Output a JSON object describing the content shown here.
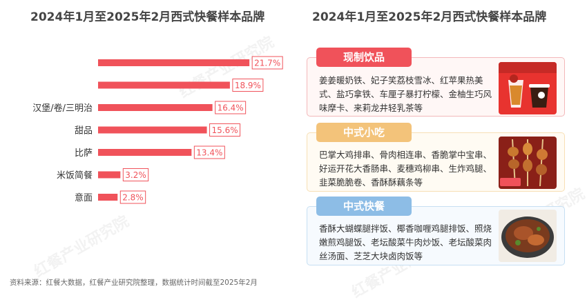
{
  "left_title": "2024年1月至2025年2月西式快餐样本品牌",
  "right_title": "2024年1月至2025年2月西式快餐样本品牌",
  "chart_data": {
    "type": "bar",
    "orientation": "horizontal",
    "categories": [
      "",
      "",
      "汉堡/卷/三明治",
      "甜品",
      "比萨",
      "米饭简餐",
      "意面",
      "",
      ""
    ],
    "values": [
      21.7,
      18.9,
      16.4,
      15.6,
      13.4,
      3.2,
      2.8,
      null,
      null
    ],
    "value_labels": [
      "21.7%",
      "18.9%",
      "16.4%",
      "15.6%",
      "13.4%",
      "3.2%",
      "2.8%",
      "",
      ""
    ],
    "bar_color": "#f0525a",
    "label_border_color": "#f0525a",
    "grid": false,
    "legend": "none"
  },
  "cards": [
    {
      "header": "现制饮品",
      "header_color": "#f0525a",
      "border_color": "#f3b7b9",
      "bg": "#fff7f6",
      "text": "姜姜暖奶铁、妃子笑荔枝雪冰、红苹果热美式、盐巧拿铁、车厘子暴打柠檬、金柚生巧风味摩卡、来莉龙井轻乳茶等",
      "image": "drink-photo"
    },
    {
      "header": "中式小吃",
      "header_color": "#f3c37a",
      "border_color": "#f7dfb4",
      "bg": "#fffbf3",
      "text": "巴掌大鸡排串、骨肉相连串、香脆掌中宝串、好运开花大香肠串、麦穗鸡柳串、生炸鸡腿、韭菜脆脆卷、香酥酥藕条等",
      "image": "skewer-photo"
    },
    {
      "header": "中式快餐",
      "header_color": "#8dbde6",
      "border_color": "#c6dff2",
      "bg": "#f6fafe",
      "text": "香酥大蝴蝶腿拌饭、椰香咖喱鸡腿排饭、照烧嫩煎鸡腿饭、老坛酸菜牛肉炒饭、老坛酸菜肉丝汤面、芝芝大块卤肉饭等",
      "image": "rice-dish-photo"
    }
  ],
  "source": "资料来源：红餐大数据，红餐产业研究院整理，数据统计时间截至2025年2月",
  "watermark": "红餐产业研究院"
}
